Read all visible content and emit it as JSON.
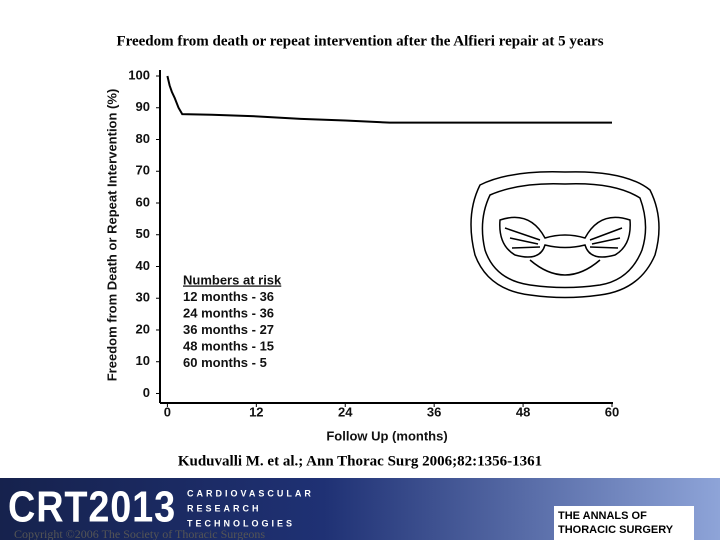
{
  "chart_data": {
    "type": "line",
    "title": "Freedom from death or repeat intervention after the Alfieri repair at 5 years",
    "xlabel": "Follow Up (months)",
    "ylabel": "Freedom from Death or Repeat Intervention (%)",
    "x": [
      0,
      0.3,
      0.6,
      1,
      1.5,
      2,
      6,
      12,
      18,
      24,
      30,
      36,
      48,
      60
    ],
    "values": [
      100,
      97,
      95,
      93,
      90,
      88,
      87.8,
      87.3,
      86.5,
      86,
      85.3,
      85.3,
      85.3,
      85.3
    ],
    "color": "#000000",
    "xlim": [
      -1,
      60
    ],
    "xticks": [
      0,
      12,
      24,
      36,
      48,
      60
    ],
    "ylim": [
      -3,
      100
    ],
    "yticks": [
      0,
      10,
      20,
      30,
      40,
      50,
      60,
      70,
      80,
      90,
      100
    ],
    "annotations": [
      "Numbers at risk",
      "12 months - 36",
      "24 months - 36",
      "36 months - 27",
      "48 months - 15",
      "60 months - 5"
    ]
  },
  "citation": "Kuduvalli  M. et al.; Ann Thorac Surg 2006;82:1356-1361",
  "footer": {
    "logo": "CRT2013",
    "lines": [
      "CARDIOVASCULAR",
      "RESEARCH",
      "TECHNOLOGIES"
    ],
    "journal": [
      "THE ANNALS OF",
      "THORACIC SURGERY"
    ],
    "copyright": "Copyright ©2006 The Society of Thoracic Surgeons"
  }
}
